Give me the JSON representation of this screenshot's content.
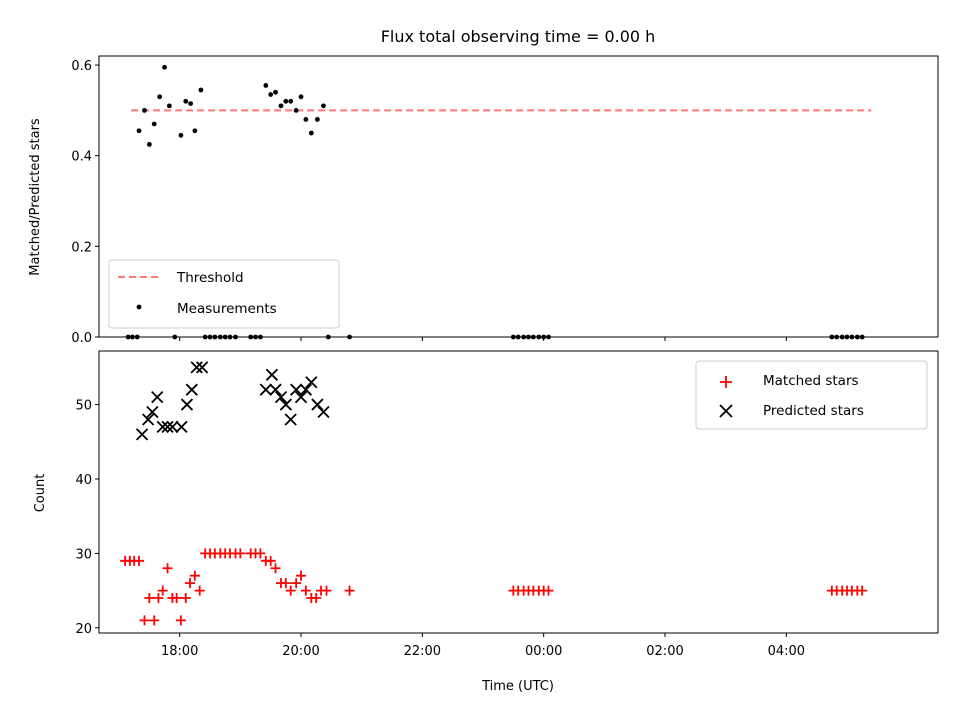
{
  "chart_data": [
    {
      "type": "scatter",
      "title": "Flux total observing time = 0.00 h",
      "xlabel": "",
      "ylabel": "Matched/Predicted stars",
      "xlim": [
        16.67,
        30.5
      ],
      "ylim": [
        0.0,
        0.62
      ],
      "yticks": [
        0.0,
        0.2,
        0.4,
        0.6
      ],
      "ytick_labels": [
        "0.0",
        "0.2",
        "0.4",
        "0.6"
      ],
      "xticks": [
        18,
        20,
        22,
        24,
        26,
        28
      ],
      "xtick_labels": [
        "",
        "",
        "",
        "",
        "",
        ""
      ],
      "legend_position": "bottom-left",
      "series": [
        {
          "name": "Threshold",
          "kind": "line",
          "style": "dashed",
          "color": "#ff7777",
          "points": [
            [
              17.2,
              0.5
            ],
            [
              29.4,
              0.5
            ]
          ]
        },
        {
          "name": "Measurements",
          "kind": "scatter",
          "marker": "dot",
          "color": "#000000",
          "points": [
            [
              17.15,
              0.0
            ],
            [
              17.22,
              0.0
            ],
            [
              17.3,
              0.0
            ],
            [
              17.33,
              0.455
            ],
            [
              17.42,
              0.5
            ],
            [
              17.5,
              0.425
            ],
            [
              17.58,
              0.47
            ],
            [
              17.67,
              0.53
            ],
            [
              17.75,
              0.595
            ],
            [
              17.83,
              0.51
            ],
            [
              17.92,
              0.0
            ],
            [
              18.02,
              0.445
            ],
            [
              18.1,
              0.52
            ],
            [
              18.18,
              0.515
            ],
            [
              18.25,
              0.455
            ],
            [
              18.35,
              0.545
            ],
            [
              18.42,
              0.0
            ],
            [
              18.5,
              0.0
            ],
            [
              18.58,
              0.0
            ],
            [
              18.67,
              0.0
            ],
            [
              18.75,
              0.0
            ],
            [
              18.83,
              0.0
            ],
            [
              18.92,
              0.0
            ],
            [
              19.17,
              0.0
            ],
            [
              19.25,
              0.0
            ],
            [
              19.33,
              0.0
            ],
            [
              19.42,
              0.555
            ],
            [
              19.5,
              0.535
            ],
            [
              19.58,
              0.54
            ],
            [
              19.67,
              0.51
            ],
            [
              19.75,
              0.52
            ],
            [
              19.83,
              0.52
            ],
            [
              19.92,
              0.5
            ],
            [
              20.0,
              0.53
            ],
            [
              20.08,
              0.48
            ],
            [
              20.17,
              0.45
            ],
            [
              20.27,
              0.48
            ],
            [
              20.37,
              0.51
            ],
            [
              20.45,
              0.0
            ],
            [
              20.8,
              0.0
            ],
            [
              23.5,
              0.0
            ],
            [
              23.58,
              0.0
            ],
            [
              23.67,
              0.0
            ],
            [
              23.75,
              0.0
            ],
            [
              23.83,
              0.0
            ],
            [
              23.92,
              0.0
            ],
            [
              24.0,
              0.0
            ],
            [
              24.08,
              0.0
            ],
            [
              28.75,
              0.0
            ],
            [
              28.83,
              0.0
            ],
            [
              28.92,
              0.0
            ],
            [
              29.0,
              0.0
            ],
            [
              29.08,
              0.0
            ],
            [
              29.17,
              0.0
            ],
            [
              29.25,
              0.0
            ]
          ]
        }
      ]
    },
    {
      "type": "scatter",
      "title": "",
      "xlabel": "Time (UTC)",
      "ylabel": "Count",
      "xlim": [
        16.67,
        30.5
      ],
      "ylim": [
        19.3,
        57.2
      ],
      "yticks": [
        20,
        30,
        40,
        50
      ],
      "ytick_labels": [
        "20",
        "30",
        "40",
        "50"
      ],
      "xticks": [
        18,
        20,
        22,
        24,
        26,
        28
      ],
      "xtick_labels": [
        "18:00",
        "20:00",
        "22:00",
        "00:00",
        "02:00",
        "04:00"
      ],
      "legend_position": "top-right",
      "series": [
        {
          "name": "Matched stars",
          "kind": "scatter",
          "marker": "plus",
          "color": "#ff0000",
          "points": [
            [
              17.1,
              29
            ],
            [
              17.18,
              29
            ],
            [
              17.25,
              29
            ],
            [
              17.33,
              29
            ],
            [
              17.42,
              21
            ],
            [
              17.5,
              24
            ],
            [
              17.58,
              21
            ],
            [
              17.65,
              24
            ],
            [
              17.72,
              25
            ],
            [
              17.8,
              28
            ],
            [
              17.88,
              24
            ],
            [
              17.95,
              24
            ],
            [
              18.02,
              21
            ],
            [
              18.1,
              24
            ],
            [
              18.17,
              26
            ],
            [
              18.25,
              27
            ],
            [
              18.33,
              25
            ],
            [
              18.42,
              30
            ],
            [
              18.5,
              30
            ],
            [
              18.58,
              30
            ],
            [
              18.67,
              30
            ],
            [
              18.75,
              30
            ],
            [
              18.83,
              30
            ],
            [
              18.92,
              30
            ],
            [
              19.0,
              30
            ],
            [
              19.17,
              30
            ],
            [
              19.25,
              30
            ],
            [
              19.33,
              30
            ],
            [
              19.42,
              29
            ],
            [
              19.5,
              29
            ],
            [
              19.58,
              28
            ],
            [
              19.67,
              26
            ],
            [
              19.75,
              26
            ],
            [
              19.83,
              25
            ],
            [
              19.92,
              26
            ],
            [
              20.0,
              27
            ],
            [
              20.08,
              25
            ],
            [
              20.17,
              24
            ],
            [
              20.25,
              24
            ],
            [
              20.33,
              25
            ],
            [
              20.42,
              25
            ],
            [
              20.8,
              25
            ],
            [
              23.5,
              25
            ],
            [
              23.58,
              25
            ],
            [
              23.67,
              25
            ],
            [
              23.75,
              25
            ],
            [
              23.83,
              25
            ],
            [
              23.92,
              25
            ],
            [
              24.0,
              25
            ],
            [
              24.08,
              25
            ],
            [
              28.75,
              25
            ],
            [
              28.83,
              25
            ],
            [
              28.92,
              25
            ],
            [
              29.0,
              25
            ],
            [
              29.08,
              25
            ],
            [
              29.17,
              25
            ],
            [
              29.25,
              25
            ]
          ]
        },
        {
          "name": "Predicted stars",
          "kind": "scatter",
          "marker": "x",
          "color": "#000000",
          "points": [
            [
              17.38,
              46
            ],
            [
              17.48,
              48
            ],
            [
              17.55,
              49
            ],
            [
              17.63,
              51
            ],
            [
              17.72,
              47
            ],
            [
              17.8,
              47
            ],
            [
              17.88,
              47
            ],
            [
              18.03,
              47
            ],
            [
              18.12,
              50
            ],
            [
              18.2,
              52
            ],
            [
              18.28,
              55
            ],
            [
              18.37,
              55
            ],
            [
              19.42,
              52
            ],
            [
              19.52,
              54
            ],
            [
              19.58,
              52
            ],
            [
              19.67,
              51
            ],
            [
              19.75,
              50
            ],
            [
              19.83,
              48
            ],
            [
              19.92,
              52
            ],
            [
              20.0,
              51
            ],
            [
              20.08,
              52
            ],
            [
              20.17,
              53
            ],
            [
              20.27,
              50
            ],
            [
              20.37,
              49
            ]
          ]
        }
      ]
    }
  ]
}
